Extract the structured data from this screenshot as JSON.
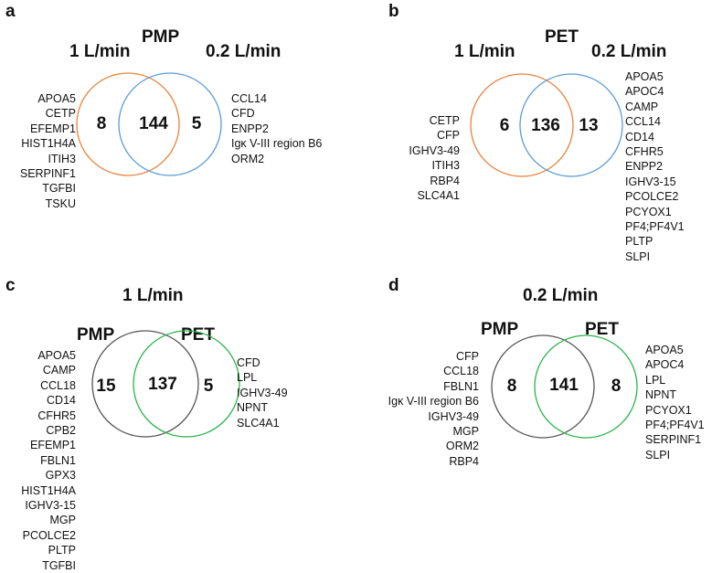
{
  "colors": {
    "orange": "#e8823a",
    "blue": "#5b9bd5",
    "gray": "#555555",
    "green": "#2ab34b"
  },
  "panels": {
    "a": {
      "letter": "a",
      "title": "PMP",
      "left_label": "1 L/min",
      "right_label": "0.2 L/min",
      "left_only": "8",
      "overlap": "144",
      "right_only": "5",
      "left_list": [
        "APOA5",
        "CETP",
        "EFEMP1",
        "HIST1H4A",
        "ITIH3",
        "SERPINF1",
        "TGFBI",
        "TSKU"
      ],
      "right_list": [
        "CCL14",
        "CFD",
        "ENPP2",
        "Igκ V-III region B6",
        "ORM2"
      ]
    },
    "b": {
      "letter": "b",
      "title": "PET",
      "left_label": "1 L/min",
      "right_label": "0.2 L/min",
      "left_only": "6",
      "overlap": "136",
      "right_only": "13",
      "left_list": [
        "CETP",
        "CFP",
        "IGHV3-49",
        "ITIH3",
        "RBP4",
        "SLC4A1"
      ],
      "right_list": [
        "APOA5",
        "APOC4",
        "CAMP",
        "CCL14",
        "CD14",
        "CFHR5",
        "ENPP2",
        "IGHV3-15",
        "PCOLCE2",
        "PCYOX1",
        "PF4;PF4V1",
        "PLTP",
        "SLPI"
      ]
    },
    "c": {
      "letter": "c",
      "title": "1 L/min",
      "left_label": "PMP",
      "right_label": "PET",
      "left_only": "15",
      "overlap": "137",
      "right_only": "5",
      "left_list": [
        "APOA5",
        "CAMP",
        "CCL18",
        "CD14",
        "CFHR5",
        "CPB2",
        "EFEMP1",
        "FBLN1",
        "GPX3",
        "HIST1H4A",
        "IGHV3-15",
        "MGP",
        "PCOLCE2",
        "PLTP",
        "TGFBI"
      ],
      "right_list": [
        "CFD",
        "LPL",
        "IGHV3-49",
        "NPNT",
        "SLC4A1"
      ]
    },
    "d": {
      "letter": "d",
      "title": "0.2 L/min",
      "left_label": "PMP",
      "right_label": "PET",
      "left_only": "8",
      "overlap": "141",
      "right_only": "8",
      "left_list": [
        "CFP",
        "CCL18",
        "FBLN1",
        "Igκ V-III region B6",
        "IGHV3-49",
        "MGP",
        "ORM2",
        "RBP4"
      ],
      "right_list": [
        "APOA5",
        "APOC4",
        "LPL",
        "NPNT",
        "PCYOX1",
        "PF4;PF4V1",
        "SERPINF1",
        "SLPI"
      ]
    }
  }
}
